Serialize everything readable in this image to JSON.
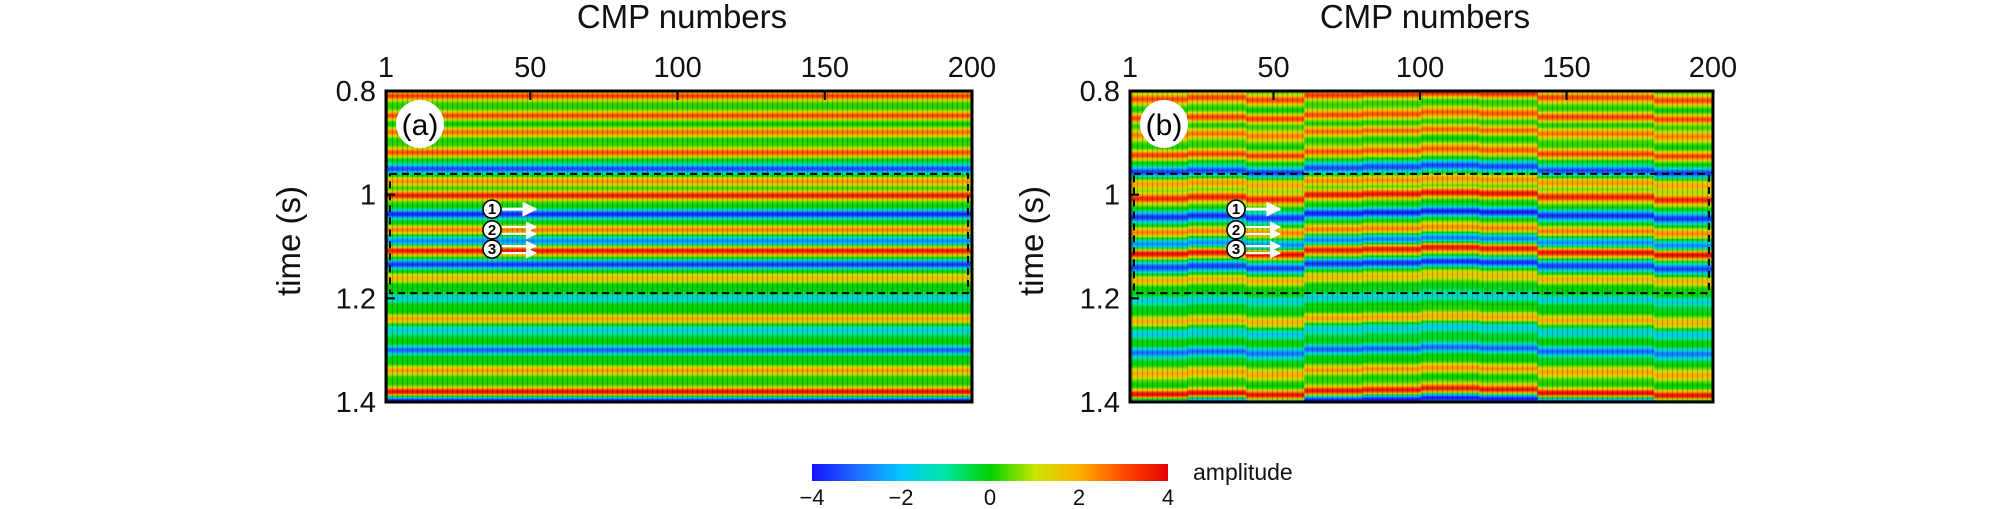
{
  "chart_data": {
    "type": "heatmap",
    "description_kind": "seismic CMP gathers shown as amplitude heatmaps",
    "colorbar": {
      "label": "amplitude",
      "range": [
        -4,
        4
      ],
      "ticks": [
        "−4",
        "−2",
        "0",
        "2",
        "4"
      ],
      "colors": [
        "#1414ff",
        "#1e6cff",
        "#00c8ff",
        "#00e6a0",
        "#00d200",
        "#c8e600",
        "#ffb000",
        "#ff4a00",
        "#e60000"
      ]
    },
    "panels": [
      {
        "label": "(a)",
        "xlabel": "CMP numbers",
        "ylabel": "time (s)",
        "xlim": [
          1,
          200
        ],
        "ylim": [
          0.8,
          1.4
        ],
        "xticks": [
          "1",
          "50",
          "100",
          "150",
          "200"
        ],
        "yticks": [
          "0.8",
          "1",
          "1.2",
          "1.4"
        ],
        "window_dashed": [
          0.96,
          1.19
        ],
        "markers": [
          "1",
          "2",
          "3"
        ]
      },
      {
        "label": "(b)",
        "xlabel": "CMP numbers",
        "ylabel": "time (s)",
        "xlim": [
          1,
          200
        ],
        "ylim": [
          0.8,
          1.4
        ],
        "xticks": [
          "1",
          "50",
          "100",
          "150",
          "200"
        ],
        "yticks": [
          "0.8",
          "1",
          "1.2",
          "1.4"
        ],
        "window_dashed": [
          0.96,
          1.19
        ],
        "markers": [
          "1",
          "2",
          "3"
        ]
      }
    ],
    "events": [
      {
        "t": 0.81,
        "amp": 3.2
      },
      {
        "t": 0.847,
        "amp": 3.0
      },
      {
        "t": 0.88,
        "amp": 2.6
      },
      {
        "t": 0.918,
        "amp": 3.0
      },
      {
        "t": 0.95,
        "amp": -3.5
      },
      {
        "t": 0.975,
        "amp": 2.2
      },
      {
        "t": 1.002,
        "amp": 3.6
      },
      {
        "t": 1.038,
        "amp": -3.8
      },
      {
        "t": 1.068,
        "amp": 2.4
      },
      {
        "t": 1.09,
        "amp": -2.8
      },
      {
        "t": 1.108,
        "amp": 3.8
      },
      {
        "t": 1.135,
        "amp": -3.6
      },
      {
        "t": 1.16,
        "amp": 1.8
      },
      {
        "t": 1.2,
        "amp": -1.6
      },
      {
        "t": 1.24,
        "amp": 2.0
      },
      {
        "t": 1.262,
        "amp": -1.8
      },
      {
        "t": 1.3,
        "amp": -3.0
      },
      {
        "t": 1.34,
        "amp": 2.2
      },
      {
        "t": 1.38,
        "amp": 3.8
      },
      {
        "t": 1.398,
        "amp": -3.9
      }
    ]
  }
}
